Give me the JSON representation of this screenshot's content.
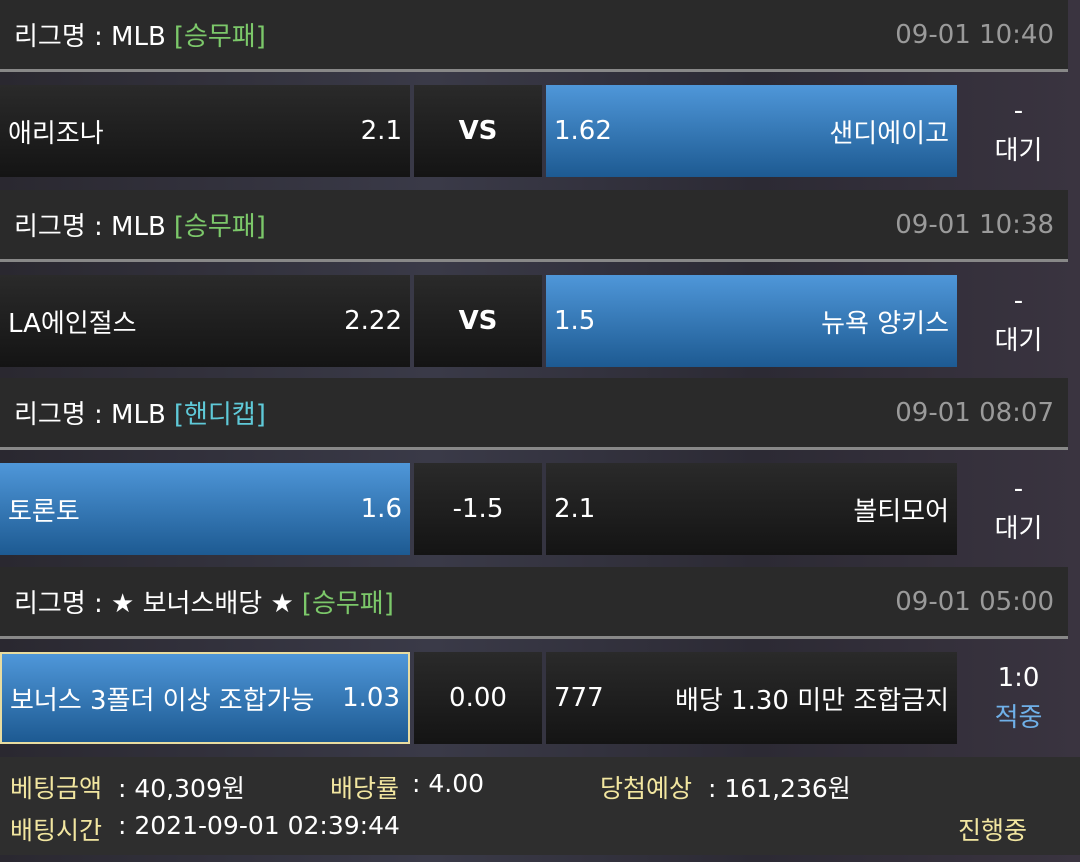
{
  "matches": [
    {
      "league_label": "리그명 : MLB",
      "type": "[승무패]",
      "type_color": "#7cc86a",
      "time": "09-01 10:40",
      "home": "애리조나",
      "home_odds": "2.1",
      "mid": "VS",
      "away_odds": "1.62",
      "away": "샌디에이고",
      "selected": "away",
      "status_top": "-",
      "status_bottom": "대기"
    },
    {
      "league_label": "리그명 : MLB",
      "type": "[승무패]",
      "type_color": "#7cc86a",
      "time": "09-01 10:38",
      "home": "LA에인절스",
      "home_odds": "2.22",
      "mid": "VS",
      "away_odds": "1.5",
      "away": "뉴욕 양키스",
      "selected": "away",
      "status_top": "-",
      "status_bottom": "대기"
    },
    {
      "league_label": "리그명 : MLB",
      "type": "[핸디캡]",
      "type_color": "#5fc9d8",
      "time": "09-01 08:07",
      "home": "토론토",
      "home_odds": "1.6",
      "mid": "-1.5",
      "away_odds": "2.1",
      "away": "볼티모어",
      "selected": "home",
      "status_top": "-",
      "status_bottom": "대기"
    },
    {
      "league_label": "리그명 : ★ 보너스배당 ★",
      "type": "[승무패]",
      "type_color": "#7cc86a",
      "time": "09-01 05:00",
      "home": "보너스 3폴더 이상 조합가능",
      "home_odds": "1.03",
      "mid": "0.00",
      "away_odds": "777",
      "away": "배당 1.30 미만 조합금지",
      "selected": "home",
      "status_top": "1:0",
      "status_bottom": "적중"
    }
  ],
  "footer": {
    "bet_amount_label": "베팅금액",
    "bet_amount": ": 40,309원",
    "odds_label": "배당률",
    "odds": ": 4.00",
    "expected_label": "당첨예상",
    "expected": ": 161,236원",
    "bet_time_label": "배팅시간",
    "bet_time": " : 2021-09-01 02:39:44",
    "progress": "진행중"
  },
  "colors": {
    "selected": "#3a7fc0",
    "label_yellow": "#f2e6a0",
    "win_blue": "#6fb0e8"
  }
}
